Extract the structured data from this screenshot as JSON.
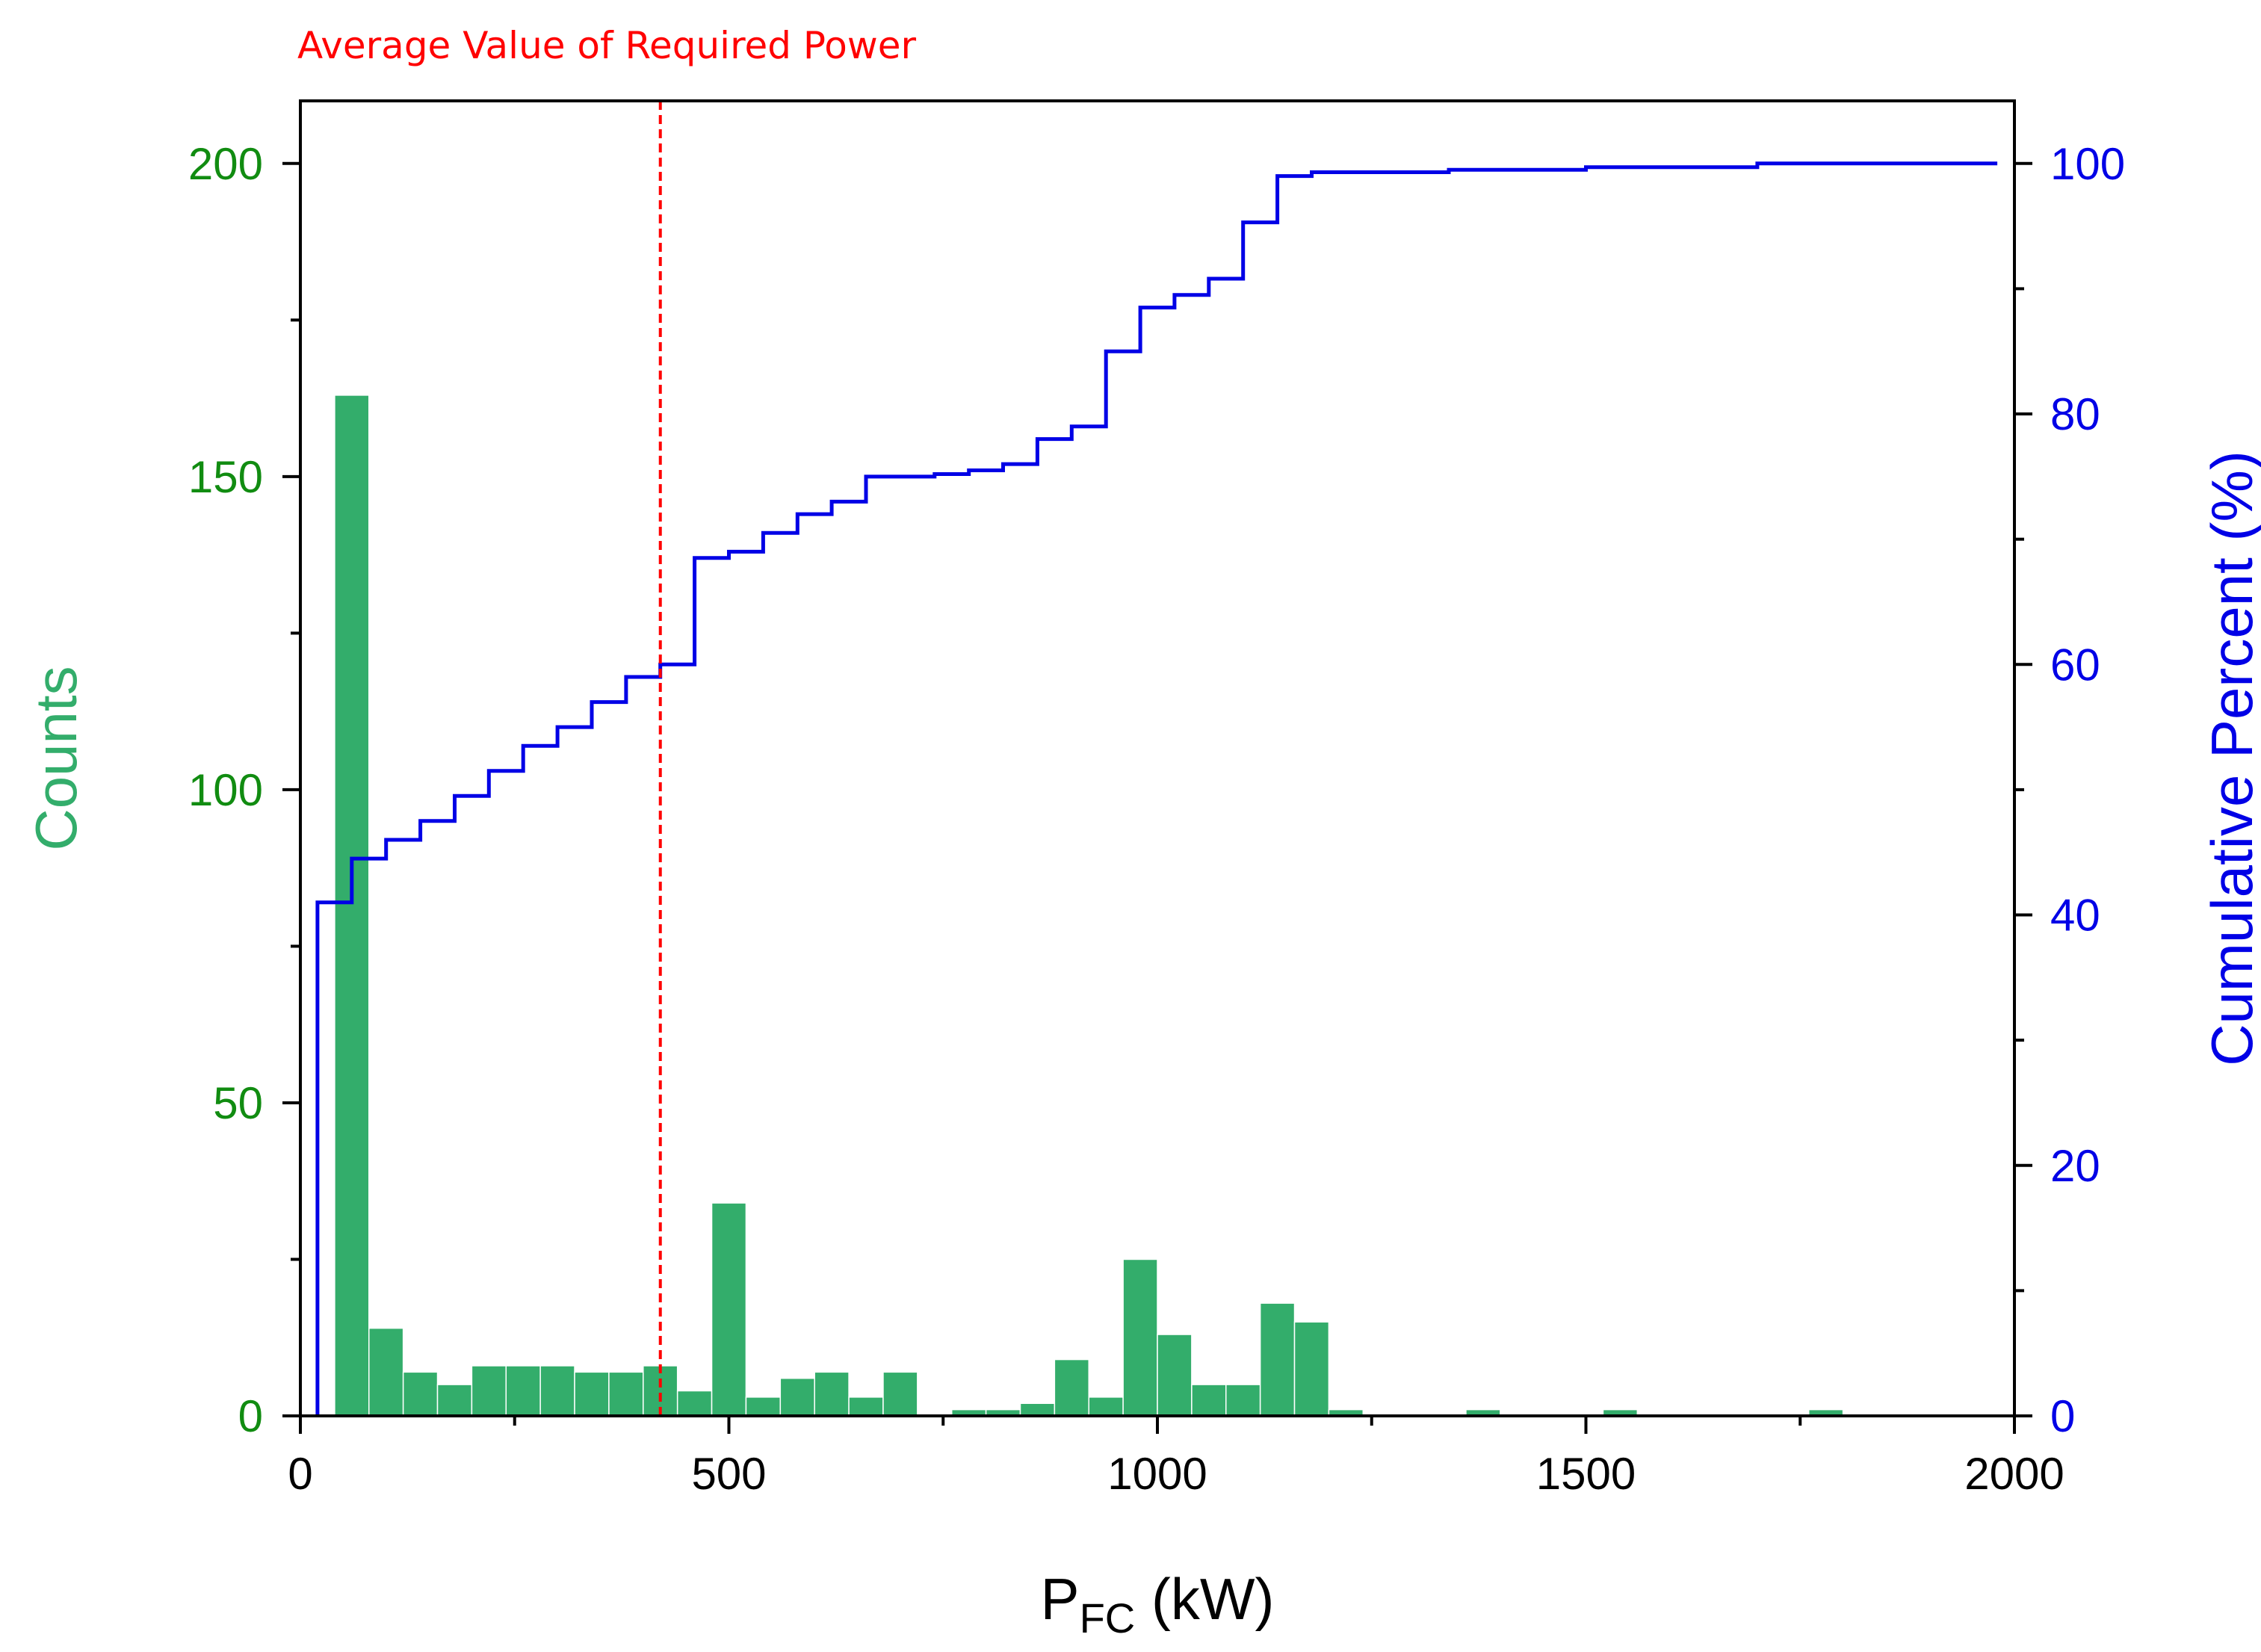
{
  "chart_data": {
    "type": "bar",
    "annotation": "Average Value of Required Power",
    "xlabel": "P",
    "xlabel_sub": "FC",
    "xlabel_unit": " (kW)",
    "ylabel": "Counts",
    "y2label": "Cumulative Percent (%)",
    "xlim": [
      0,
      2000
    ],
    "ylim": [
      0,
      210
    ],
    "y2lim": [
      0,
      105
    ],
    "x_ticks": [
      0,
      500,
      1000,
      1500,
      2000
    ],
    "y_ticks": [
      0,
      50,
      100,
      150,
      200
    ],
    "y2_ticks": [
      0,
      20,
      40,
      60,
      80,
      100
    ],
    "grid": false,
    "bin_width": 40,
    "average_line_x": 420,
    "colors": {
      "bars": "#33ad6b",
      "cumulative": "#0000e6",
      "average": "#ff0000",
      "left_axis": "#118c11",
      "counts_title": "#33ad6b",
      "right_axis": "#0000e6"
    },
    "series": [
      {
        "name": "Counts",
        "bin_start": [
          0,
          40,
          80,
          120,
          160,
          200,
          240,
          280,
          320,
          360,
          400,
          440,
          480,
          520,
          560,
          600,
          640,
          680,
          720,
          760,
          800,
          840,
          880,
          920,
          960,
          1000,
          1040,
          1080,
          1120,
          1160,
          1200,
          1240,
          1280,
          1320,
          1360,
          1400,
          1440,
          1480,
          1520,
          1560,
          1600,
          1640,
          1680,
          1720,
          1760,
          1800,
          1840,
          1880,
          1920,
          1960
        ],
        "values": [
          0,
          163,
          14,
          7,
          5,
          8,
          8,
          8,
          7,
          7,
          8,
          4,
          34,
          3,
          6,
          7,
          3,
          7,
          0,
          1,
          1,
          2,
          9,
          3,
          25,
          13,
          5,
          5,
          18,
          15,
          1,
          0,
          0,
          0,
          1,
          0,
          0,
          0,
          1,
          0,
          0,
          0,
          0,
          0,
          1,
          0,
          0,
          0,
          0,
          0
        ]
      },
      {
        "name": "Cumulative Percent (%)",
        "x": [
          20,
          20,
          60,
          60,
          100,
          100,
          140,
          140,
          180,
          180,
          220,
          220,
          260,
          260,
          300,
          300,
          340,
          340,
          380,
          380,
          420,
          420,
          460,
          460,
          500,
          500,
          540,
          540,
          580,
          580,
          620,
          620,
          660,
          660,
          700,
          700,
          740,
          740,
          780,
          780,
          820,
          820,
          860,
          860,
          900,
          900,
          940,
          940,
          980,
          980,
          1020,
          1020,
          1060,
          1060,
          1100,
          1100,
          1140,
          1140,
          1180,
          1180,
          1220,
          1220,
          1340,
          1340,
          1500,
          1500,
          1700,
          1700,
          1980
        ],
        "values": [
          0,
          41,
          41,
          44.5,
          44.5,
          46,
          46,
          47.5,
          47.5,
          49.5,
          49.5,
          51.5,
          51.5,
          53.5,
          53.5,
          55,
          55,
          57,
          57,
          59,
          59,
          60,
          60,
          68.5,
          68.5,
          69,
          69,
          70.5,
          70.5,
          72,
          72,
          73,
          73,
          75,
          75,
          75,
          75,
          75.2,
          75.2,
          75.5,
          75.5,
          76,
          76,
          78,
          78,
          79,
          79,
          85,
          85,
          88.5,
          88.5,
          89.5,
          89.5,
          90.8,
          90.8,
          95.3,
          95.3,
          99,
          99,
          99.3,
          99.3,
          99.3,
          99.3,
          99.5,
          99.5,
          99.7,
          99.7,
          100,
          100
        ]
      }
    ]
  }
}
